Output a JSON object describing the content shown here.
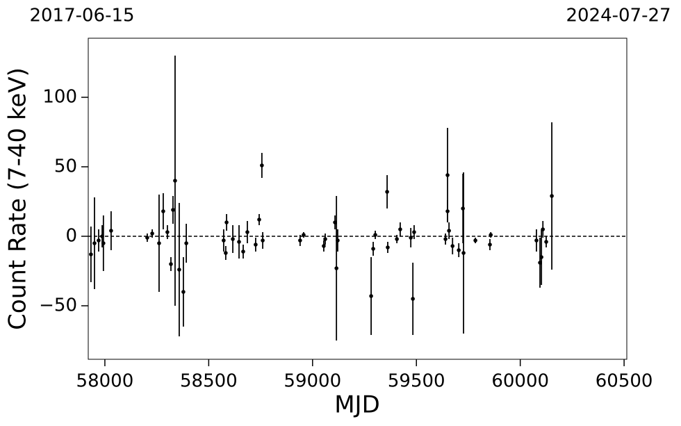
{
  "chart_data": {
    "type": "scatter",
    "xlabel": "MJD",
    "ylabel": "Count Rate (7-40 keV)",
    "annotations": [
      "2017-06-15",
      "2024-07-27"
    ],
    "hline": 0,
    "xlim": [
      57920,
      60513
    ],
    "ylim": [
      -88.5,
      142.5
    ],
    "xticks": [
      58000,
      58500,
      59000,
      59500,
      60000,
      60500
    ],
    "yticks": [
      {
        "value": -50,
        "label": "−50"
      },
      0,
      50,
      100
    ],
    "series": [
      {
        "color": "#000000",
        "x": [
          57933,
          57950,
          57970,
          57987,
          57993,
          58030,
          58204,
          58228,
          58261,
          58281,
          58301,
          58318,
          58328,
          58338,
          58358,
          58378,
          58392,
          58572,
          58582,
          58586,
          58616,
          58646,
          58666,
          58686,
          58726,
          58743,
          58756,
          58760,
          58940,
          58957,
          59054,
          59061,
          59108,
          59115,
          59121,
          59282,
          59292,
          59302,
          59359,
          59362,
          59406,
          59422,
          59473,
          59483,
          59489,
          59640,
          59650,
          59650,
          59657,
          59674,
          59704,
          59724,
          59727,
          59784,
          59854,
          59858,
          60078,
          60095,
          60102,
          60109,
          60125,
          60152
        ],
        "values": [
          -13,
          -5,
          -3,
          0,
          -5,
          4,
          -1,
          2,
          -5,
          18,
          3,
          -20,
          19,
          40,
          -24,
          -40,
          -5,
          -3,
          -12,
          10,
          -2,
          -4,
          -11,
          3,
          -6,
          12,
          51,
          -3,
          -3,
          1,
          -7,
          -2,
          10,
          -23,
          -3,
          -43,
          -9,
          1,
          32,
          -8,
          -2,
          5,
          -1,
          -45,
          3,
          -2,
          44,
          18,
          4,
          -7,
          -10,
          20,
          -12,
          -3,
          -6,
          1,
          -3,
          -19,
          -15,
          5,
          -4,
          29
        ],
        "errors": [
          20,
          33,
          8,
          8,
          20,
          14,
          3,
          3,
          35,
          13,
          5,
          5,
          10,
          90,
          48,
          25,
          14,
          8,
          5,
          6,
          10,
          12,
          5,
          8,
          5,
          4,
          9,
          6,
          4,
          2,
          4,
          4,
          5,
          52,
          8,
          28,
          5,
          3,
          12,
          4,
          3,
          5,
          7,
          26,
          5,
          4,
          34,
          8,
          6,
          6,
          5,
          25,
          58,
          2,
          4,
          2,
          8,
          18,
          20,
          6,
          4,
          53
        ]
      }
    ]
  }
}
